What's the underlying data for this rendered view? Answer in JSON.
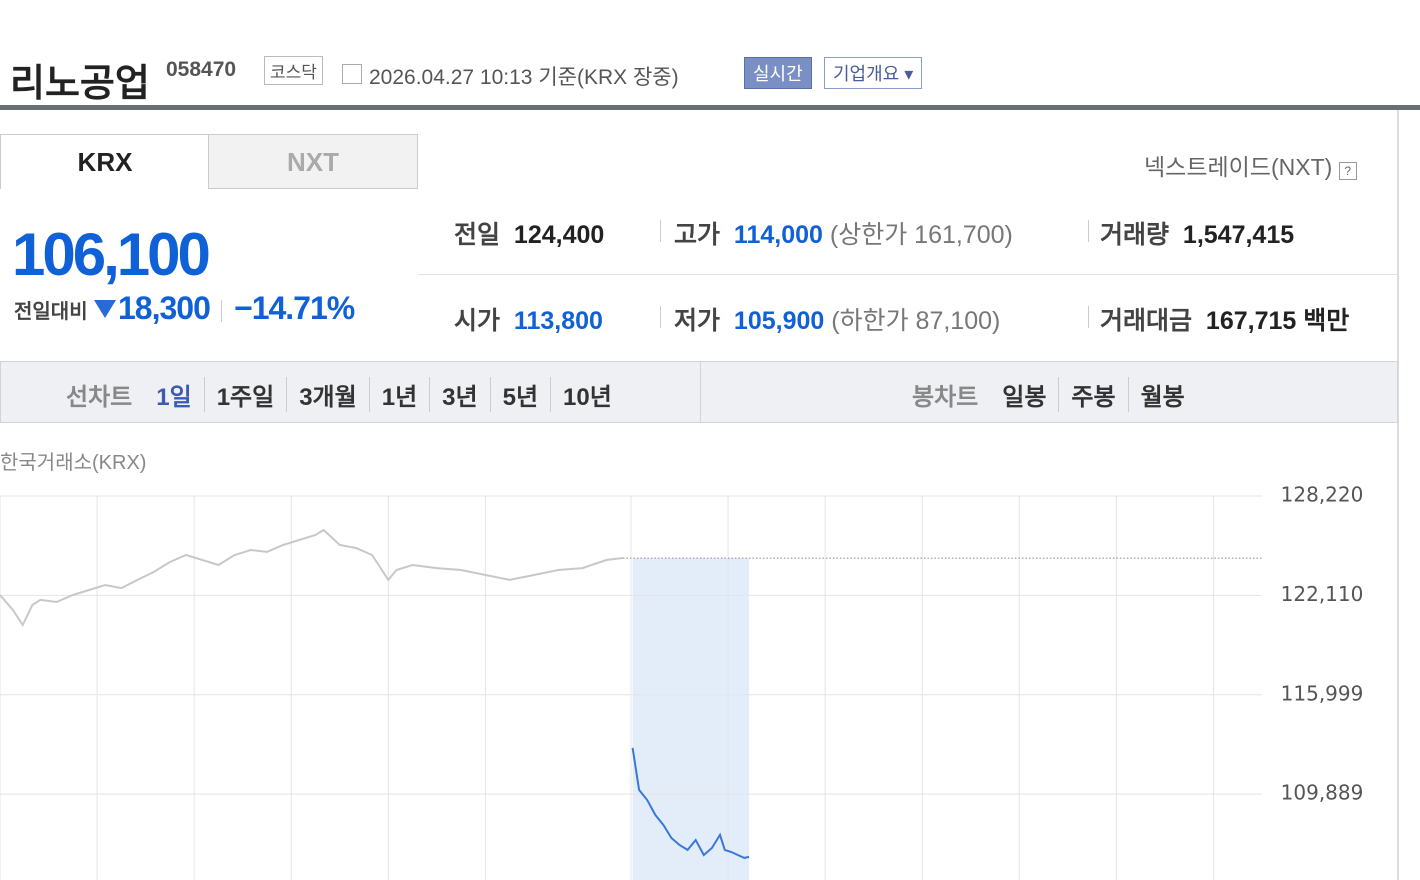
{
  "header": {
    "title": "리노공업",
    "code": "058470",
    "market": "코스닥",
    "datetime": "2026.04.27 10:13",
    "basis": "기준(KRX 장중)",
    "realtime_button": "실시간",
    "company_button": "기업개요"
  },
  "tabs": [
    "KRX",
    "NXT"
  ],
  "nxt_link": "넥스트레이드(NXT)",
  "price": {
    "current": "106,100",
    "change_label": "전일대비",
    "change": "18,300",
    "change_rate": "−14.71%"
  },
  "stats": {
    "prev_close": {
      "label": "전일",
      "value": "124,400"
    },
    "high": {
      "label": "고가",
      "value": "114,000",
      "limit_label": "상한가",
      "limit_value": "161,700"
    },
    "volume": {
      "label": "거래량",
      "value": "1,547,415"
    },
    "open": {
      "label": "시가",
      "value": "113,800"
    },
    "low": {
      "label": "저가",
      "value": "105,900",
      "limit_label": "하한가",
      "limit_value": "87,100"
    },
    "amount": {
      "label": "거래대금",
      "value": "167,715",
      "unit": "백만"
    }
  },
  "period_bar": {
    "line_label": "선차트",
    "line_periods": [
      "1일",
      "1주일",
      "3개월",
      "1년",
      "3년",
      "5년",
      "10년"
    ],
    "candle_label": "봉차트",
    "candle_periods": [
      "일봉",
      "주봉",
      "월봉"
    ]
  },
  "chart_data": {
    "type": "line",
    "title": "한국거래소(KRX)",
    "xlim": [
      0,
      780
    ],
    "xticks": [
      0,
      60,
      120,
      180,
      240,
      300,
      390,
      450,
      510,
      570,
      630,
      690,
      750
    ],
    "ylim": [
      104610,
      128220
    ],
    "yticks": [
      {
        "value": 128220,
        "label": "128,220"
      },
      {
        "value": 122110,
        "label": "122,110"
      },
      {
        "value": 115999,
        "label": "115,999"
      },
      {
        "value": 109889,
        "label": "109,889"
      }
    ],
    "grid": true,
    "reference_line": 124400,
    "series": [
      {
        "color": "#c8c8c8",
        "x": [
          0,
          8,
          14,
          20,
          25,
          35,
          45,
          55,
          65,
          75,
          85,
          95,
          105,
          115,
          125,
          135,
          145,
          155,
          165,
          175,
          185,
          195,
          200,
          210,
          220,
          230,
          240,
          245,
          255,
          270,
          285,
          300,
          315,
          330,
          345,
          360,
          375,
          385
        ],
        "values": [
          122130,
          121210,
          120290,
          121520,
          121830,
          121700,
          122130,
          122440,
          122750,
          122560,
          123060,
          123550,
          124160,
          124590,
          124290,
          123980,
          124590,
          124900,
          124780,
          125210,
          125520,
          125820,
          126130,
          125210,
          125020,
          124590,
          123060,
          123670,
          123980,
          123790,
          123670,
          123360,
          123060,
          123360,
          123670,
          123790,
          124290,
          124410
        ]
      },
      {
        "color": "#3a78d8",
        "x": [
          391,
          395,
          400,
          405,
          410,
          415,
          420,
          425,
          430,
          435,
          440,
          445,
          448,
          452,
          456,
          460,
          463
        ],
        "values": [
          112730,
          110150,
          109530,
          108610,
          107990,
          107190,
          106760,
          106460,
          107070,
          106150,
          106580,
          107380,
          106460,
          106330,
          106150,
          105970,
          106030
        ]
      }
    ]
  }
}
